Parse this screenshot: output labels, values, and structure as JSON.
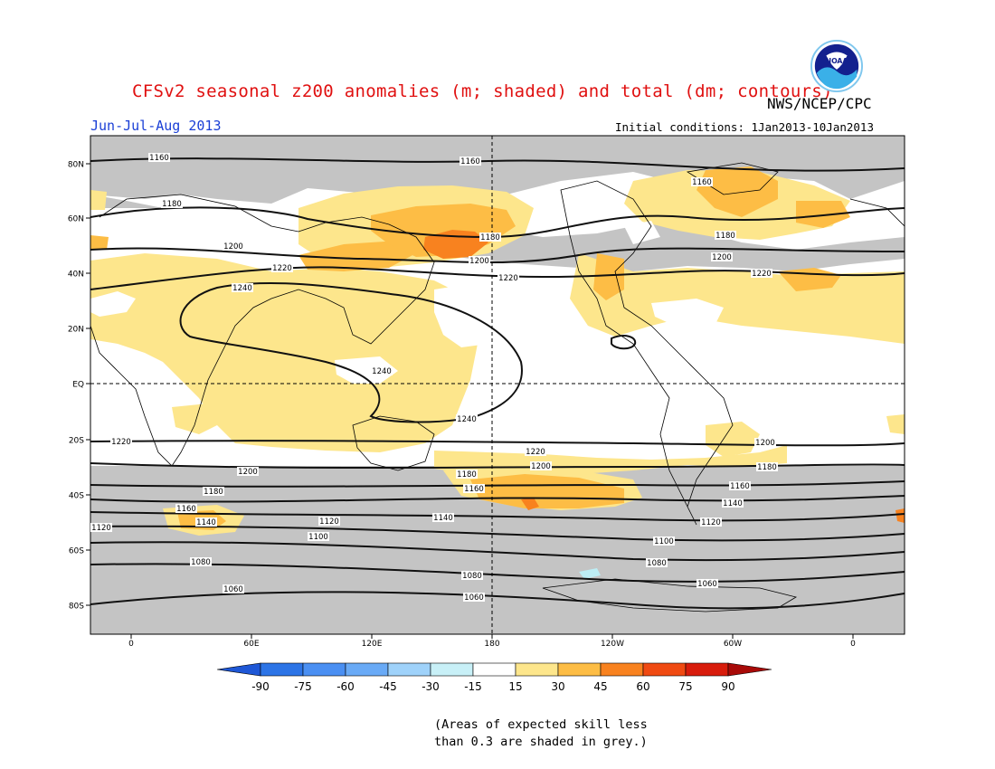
{
  "header": {
    "title": "CFSv2 seasonal z200 anomalies (m; shaded) and total (dm; contours)",
    "agency": "NWS/NCEP/CPC",
    "season": "Jun-Jul-Aug 2013",
    "initial_conditions": "Initial conditions: 1Jan2013-10Jan2013",
    "logo_text": "NOAA"
  },
  "map": {
    "lat_labels": [
      "80N",
      "60N",
      "40N",
      "20N",
      "EQ",
      "20S",
      "40S",
      "60S",
      "80S"
    ],
    "lon_labels": [
      "0",
      "60E",
      "120E",
      "180",
      "120W",
      "60W",
      "0"
    ],
    "contour_labels": [
      "1160",
      "1160",
      "1160",
      "1180",
      "1180",
      "1180",
      "1200",
      "1200",
      "1200",
      "1220",
      "1220",
      "1220",
      "1240",
      "1240",
      "1240",
      "1220",
      "1220",
      "1200",
      "1200",
      "1200",
      "1180",
      "1180",
      "1180",
      "1160",
      "1160",
      "1160",
      "1140",
      "1140",
      "1140",
      "1120",
      "1120",
      "1120",
      "1100",
      "1100",
      "1080",
      "1080",
      "1080",
      "1060",
      "1060",
      "1060"
    ],
    "colors": {
      "grey_mask": "#c4c4c4",
      "neutral": "#ffffff",
      "pos_15_30": "#fde68c",
      "pos_30_45": "#fdbd45",
      "pos_45_60": "#f8821f",
      "pos_60_75": "#f04a12",
      "neg_15_30": "#bdeef5"
    }
  },
  "colorbar": {
    "labels": [
      "-90",
      "-75",
      "-60",
      "-45",
      "-30",
      "-15",
      "15",
      "30",
      "45",
      "60",
      "75",
      "90"
    ],
    "colors": [
      "#1e57d6",
      "#2c74e6",
      "#4a8ff2",
      "#69aaf6",
      "#9fd2fa",
      "#c8f0f7",
      "#ffffff",
      "#fde68c",
      "#fdbd45",
      "#f8821f",
      "#f04a12",
      "#d81c0c",
      "#a80a08"
    ]
  },
  "footnote": {
    "line1": "(Areas of expected skill less",
    "line2": "than 0.3 are shaded in grey.)"
  }
}
